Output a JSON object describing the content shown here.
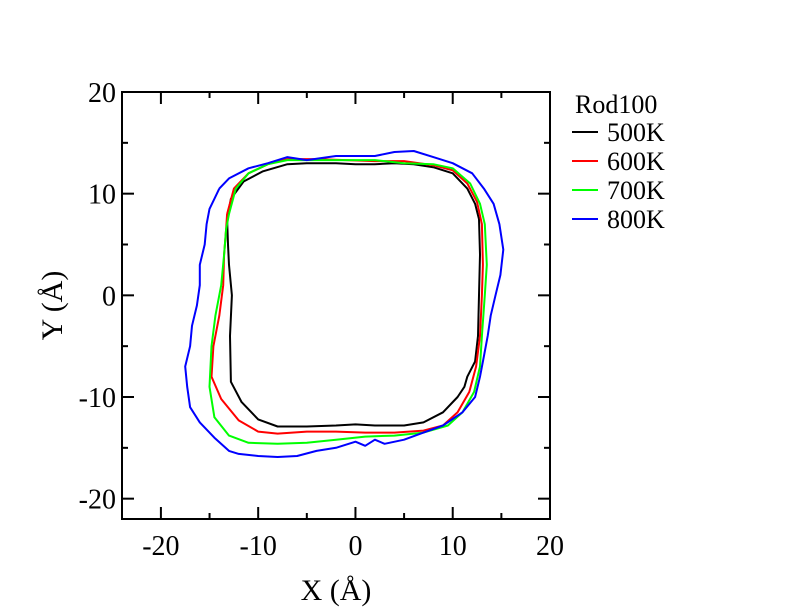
{
  "chart_data": {
    "type": "line",
    "title": "",
    "xlabel": "X (Å)",
    "ylabel": "Y (Å)",
    "xlim": [
      -24,
      20
    ],
    "ylim": [
      -22,
      20
    ],
    "xticks": [
      -20,
      -10,
      0,
      10,
      20
    ],
    "yticks": [
      -20,
      -10,
      0,
      10,
      20
    ],
    "xtick_labels": [
      "-20",
      "-10",
      "0",
      "10",
      "20"
    ],
    "ytick_labels": [
      "-20",
      "-10",
      "0",
      "10",
      "20"
    ],
    "grid": false,
    "legend": {
      "title": "Rod100",
      "placement": "outside-right-top"
    },
    "series": [
      {
        "name": "500K",
        "color": "#000000",
        "points": [
          [
            -13.2,
            7.5
          ],
          [
            -12.8,
            9.5
          ],
          [
            -11.5,
            11.2
          ],
          [
            -9.5,
            12.2
          ],
          [
            -7,
            12.9
          ],
          [
            -5,
            13.0
          ],
          [
            -2,
            13.0
          ],
          [
            0,
            12.9
          ],
          [
            2,
            12.9
          ],
          [
            4,
            13.0
          ],
          [
            6,
            12.9
          ],
          [
            8,
            12.6
          ],
          [
            10,
            12.0
          ],
          [
            11.5,
            10.5
          ],
          [
            12.3,
            9.0
          ],
          [
            12.7,
            7.5
          ],
          [
            12.8,
            4
          ],
          [
            12.7,
            0
          ],
          [
            12.6,
            -4
          ],
          [
            12.3,
            -6.5
          ],
          [
            11.5,
            -8
          ],
          [
            11.2,
            -9.0
          ],
          [
            10.5,
            -10.0
          ],
          [
            9,
            -11.5
          ],
          [
            7,
            -12.5
          ],
          [
            5,
            -12.8
          ],
          [
            2,
            -12.8
          ],
          [
            0,
            -12.7
          ],
          [
            -2,
            -12.8
          ],
          [
            -5,
            -12.9
          ],
          [
            -8,
            -12.9
          ],
          [
            -10,
            -12.2
          ],
          [
            -11.7,
            -10.5
          ],
          [
            -12.8,
            -8.5
          ],
          [
            -12.9,
            -4
          ],
          [
            -12.7,
            0
          ],
          [
            -13.0,
            3
          ],
          [
            -13.1,
            5
          ],
          [
            -13.2,
            7.5
          ]
        ]
      },
      {
        "name": "600K",
        "color": "#ff0000",
        "points": [
          [
            -13.2,
            8.0
          ],
          [
            -12.5,
            10.5
          ],
          [
            -11,
            12.0
          ],
          [
            -9,
            12.9
          ],
          [
            -7,
            13.4
          ],
          [
            -4,
            13.4
          ],
          [
            -1,
            13.3
          ],
          [
            2,
            13.2
          ],
          [
            5,
            13.2
          ],
          [
            8,
            12.8
          ],
          [
            10,
            12.3
          ],
          [
            11.5,
            11.0
          ],
          [
            12.5,
            9.2
          ],
          [
            13.0,
            7.0
          ],
          [
            13.1,
            3
          ],
          [
            13.0,
            0
          ],
          [
            12.8,
            -4
          ],
          [
            12.4,
            -7
          ],
          [
            11.7,
            -9.5
          ],
          [
            10.5,
            -11.5
          ],
          [
            9,
            -12.8
          ],
          [
            7,
            -13.3
          ],
          [
            4,
            -13.5
          ],
          [
            1,
            -13.5
          ],
          [
            -2,
            -13.4
          ],
          [
            -5,
            -13.4
          ],
          [
            -8,
            -13.6
          ],
          [
            -10,
            -13.4
          ],
          [
            -12,
            -12.3
          ],
          [
            -13.8,
            -10.2
          ],
          [
            -14.8,
            -8.0
          ],
          [
            -14.6,
            -5
          ],
          [
            -14.0,
            -2
          ],
          [
            -13.6,
            1
          ],
          [
            -13.5,
            4
          ],
          [
            -13.3,
            6.5
          ],
          [
            -13.2,
            8.0
          ]
        ]
      },
      {
        "name": "700K",
        "color": "#00ff00",
        "points": [
          [
            -13.0,
            8.0
          ],
          [
            -12.3,
            10.5
          ],
          [
            -11,
            12.0
          ],
          [
            -9,
            12.9
          ],
          [
            -7,
            13.3
          ],
          [
            -4,
            13.3
          ],
          [
            -1,
            13.3
          ],
          [
            2,
            13.3
          ],
          [
            5,
            13.0
          ],
          [
            8,
            12.9
          ],
          [
            10,
            12.5
          ],
          [
            11.8,
            11.0
          ],
          [
            12.8,
            9.0
          ],
          [
            13.3,
            7.0
          ],
          [
            13.5,
            3
          ],
          [
            13.3,
            0
          ],
          [
            13.0,
            -4
          ],
          [
            12.8,
            -7
          ],
          [
            12.2,
            -9.5
          ],
          [
            11,
            -11.5
          ],
          [
            9.5,
            -12.8
          ],
          [
            7,
            -13.5
          ],
          [
            4,
            -13.8
          ],
          [
            1,
            -13.9
          ],
          [
            -2,
            -14.2
          ],
          [
            -5,
            -14.5
          ],
          [
            -8,
            -14.6
          ],
          [
            -11,
            -14.5
          ],
          [
            -13,
            -13.8
          ],
          [
            -14.5,
            -12.0
          ],
          [
            -15.0,
            -9.0
          ],
          [
            -14.8,
            -5
          ],
          [
            -14.4,
            -2
          ],
          [
            -13.8,
            1
          ],
          [
            -13.5,
            4
          ],
          [
            -13.3,
            6.5
          ],
          [
            -13.0,
            8.0
          ]
        ]
      },
      {
        "name": "800K",
        "color": "#0000ff",
        "points": [
          [
            -14,
            10.5
          ],
          [
            -13,
            11.5
          ],
          [
            -11,
            12.5
          ],
          [
            -9,
            13.0
          ],
          [
            -7,
            13.6
          ],
          [
            -5,
            13.3
          ],
          [
            -2,
            13.7
          ],
          [
            0,
            13.7
          ],
          [
            2,
            13.7
          ],
          [
            4,
            14.1
          ],
          [
            6,
            14.2
          ],
          [
            8,
            13.6
          ],
          [
            10,
            13.0
          ],
          [
            12,
            12.0
          ],
          [
            13.2,
            10.5
          ],
          [
            14.2,
            9.0
          ],
          [
            14.8,
            7.0
          ],
          [
            15.2,
            4.5
          ],
          [
            14.9,
            2.0
          ],
          [
            14.4,
            0
          ],
          [
            13.9,
            -2.0
          ],
          [
            13.6,
            -4.0
          ],
          [
            13.2,
            -6.0
          ],
          [
            12.8,
            -8.0
          ],
          [
            12.3,
            -10.0
          ],
          [
            11,
            -11.5
          ],
          [
            9,
            -12.8
          ],
          [
            7,
            -13.5
          ],
          [
            5,
            -14.2
          ],
          [
            3,
            -14.6
          ],
          [
            2,
            -14.2
          ],
          [
            1,
            -14.8
          ],
          [
            0,
            -14.4
          ],
          [
            -2,
            -15.0
          ],
          [
            -4,
            -15.3
          ],
          [
            -6,
            -15.8
          ],
          [
            -8,
            -15.9
          ],
          [
            -10,
            -15.8
          ],
          [
            -12,
            -15.6
          ],
          [
            -13,
            -15.3
          ],
          [
            -14.5,
            -14.0
          ],
          [
            -16,
            -12.5
          ],
          [
            -17.0,
            -11.0
          ],
          [
            -17.3,
            -9.0
          ],
          [
            -17.5,
            -7.0
          ],
          [
            -17.0,
            -5.0
          ],
          [
            -16.8,
            -3.0
          ],
          [
            -16.3,
            -1.0
          ],
          [
            -16.0,
            1.0
          ],
          [
            -16.0,
            3.0
          ],
          [
            -15.5,
            5.0
          ],
          [
            -15.3,
            7.0
          ],
          [
            -15,
            8.5
          ],
          [
            -14.5,
            9.5
          ],
          [
            -14,
            10.5
          ]
        ]
      }
    ]
  }
}
